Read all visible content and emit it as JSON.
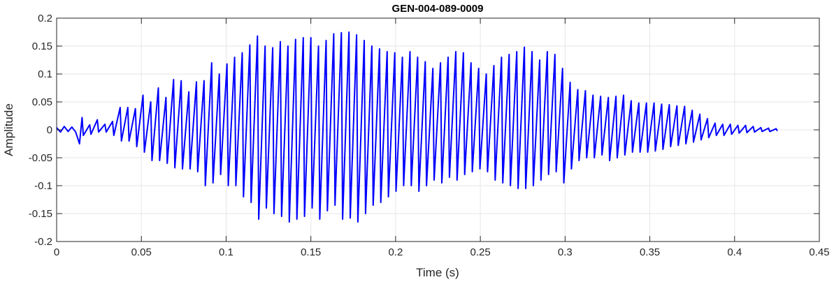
{
  "chart_data": {
    "type": "line",
    "title": "GEN-004-089-0009",
    "xlabel": "Time (s)",
    "ylabel": "Amplitude",
    "xlim": [
      0,
      0.45
    ],
    "ylim": [
      -0.2,
      0.2
    ],
    "xticks": [
      0,
      0.05,
      0.1,
      0.15,
      0.2,
      0.25,
      0.3,
      0.35,
      0.4,
      0.45
    ],
    "xtick_labels": [
      "0",
      "0.05",
      "0.1",
      "0.15",
      "0.2",
      "0.25",
      "0.3",
      "0.35",
      "0.4",
      "0.45"
    ],
    "yticks": [
      -0.2,
      -0.15,
      -0.1,
      -0.05,
      0,
      0.05,
      0.1,
      0.15,
      0.2
    ],
    "ytick_labels": [
      "-0.2",
      "-0.15",
      "-0.1",
      "-0.05",
      "0",
      "0.05",
      "0.1",
      "0.15",
      "0.2"
    ],
    "grid": true,
    "series": [
      {
        "color": "#0000ff",
        "peaks": [
          [
            0.0,
            0.004
          ],
          [
            0.0045,
            0.006
          ],
          [
            0.009,
            0.005
          ],
          [
            0.0135,
            -0.025
          ],
          [
            0.015,
            0.022
          ],
          [
            0.0195,
            0.009
          ],
          [
            0.024,
            0.018
          ],
          [
            0.0285,
            0.01
          ],
          [
            0.033,
            0.015
          ],
          [
            0.0375,
            0.04
          ],
          [
            0.042,
            0.04
          ],
          [
            0.0465,
            0.038
          ],
          [
            0.051,
            0.062
          ],
          [
            0.0555,
            0.05
          ],
          [
            0.06,
            0.075
          ],
          [
            0.0645,
            0.058
          ],
          [
            0.069,
            0.09
          ],
          [
            0.0735,
            0.088
          ],
          [
            0.078,
            0.068
          ],
          [
            0.0825,
            0.086
          ],
          [
            0.087,
            0.088
          ],
          [
            0.0915,
            0.12
          ],
          [
            0.096,
            0.1
          ],
          [
            0.1005,
            0.118
          ],
          [
            0.105,
            0.13
          ],
          [
            0.1095,
            0.138
          ],
          [
            0.114,
            0.152
          ],
          [
            0.1185,
            0.168
          ],
          [
            0.123,
            0.15
          ],
          [
            0.1275,
            0.147
          ],
          [
            0.132,
            0.158
          ],
          [
            0.1365,
            0.15
          ],
          [
            0.141,
            0.162
          ],
          [
            0.1455,
            0.165
          ],
          [
            0.15,
            0.165
          ],
          [
            0.1545,
            0.15
          ],
          [
            0.159,
            0.16
          ],
          [
            0.1635,
            0.172
          ],
          [
            0.168,
            0.174
          ],
          [
            0.1725,
            0.175
          ],
          [
            0.177,
            0.17
          ],
          [
            0.1815,
            0.16
          ],
          [
            0.186,
            0.15
          ],
          [
            0.1905,
            0.145
          ],
          [
            0.195,
            0.14
          ],
          [
            0.1995,
            0.138
          ],
          [
            0.204,
            0.13
          ],
          [
            0.2085,
            0.14
          ],
          [
            0.213,
            0.13
          ],
          [
            0.2175,
            0.122
          ],
          [
            0.222,
            0.11
          ],
          [
            0.2265,
            0.12
          ],
          [
            0.231,
            0.13
          ],
          [
            0.2355,
            0.14
          ],
          [
            0.24,
            0.138
          ],
          [
            0.2445,
            0.12
          ],
          [
            0.249,
            0.11
          ],
          [
            0.2535,
            0.1
          ],
          [
            0.258,
            0.115
          ],
          [
            0.2625,
            0.13
          ],
          [
            0.267,
            0.135
          ],
          [
            0.2715,
            0.14
          ],
          [
            0.276,
            0.148
          ],
          [
            0.2805,
            0.14
          ],
          [
            0.285,
            0.125
          ],
          [
            0.2895,
            0.14
          ],
          [
            0.294,
            0.135
          ],
          [
            0.2985,
            0.11
          ],
          [
            0.303,
            0.085
          ],
          [
            0.3075,
            0.072
          ],
          [
            0.312,
            0.07
          ],
          [
            0.3165,
            0.062
          ],
          [
            0.321,
            0.06
          ],
          [
            0.3255,
            0.058
          ],
          [
            0.33,
            0.06
          ],
          [
            0.3345,
            0.062
          ],
          [
            0.339,
            0.052
          ],
          [
            0.3435,
            0.048
          ],
          [
            0.348,
            0.048
          ],
          [
            0.3525,
            0.048
          ],
          [
            0.357,
            0.046
          ],
          [
            0.3615,
            0.045
          ],
          [
            0.366,
            0.043
          ],
          [
            0.3705,
            0.042
          ],
          [
            0.375,
            0.035
          ],
          [
            0.3795,
            0.028
          ],
          [
            0.384,
            0.02
          ],
          [
            0.3885,
            0.012
          ],
          [
            0.393,
            0.01
          ],
          [
            0.3975,
            0.01
          ],
          [
            0.402,
            0.008
          ],
          [
            0.4065,
            0.008
          ],
          [
            0.411,
            0.006
          ],
          [
            0.4155,
            0.004
          ],
          [
            0.42,
            0.003
          ],
          [
            0.4245,
            0.002
          ]
        ],
        "troughs": [
          [
            0.00225,
            -0.004
          ],
          [
            0.00675,
            -0.003
          ],
          [
            0.01125,
            -0.004
          ],
          [
            0.01575,
            -0.01
          ],
          [
            0.02025,
            -0.008
          ],
          [
            0.02475,
            -0.004
          ],
          [
            0.02925,
            -0.004
          ],
          [
            0.03375,
            -0.01
          ],
          [
            0.03825,
            -0.02
          ],
          [
            0.04275,
            -0.02
          ],
          [
            0.04725,
            -0.03
          ],
          [
            0.05175,
            -0.04
          ],
          [
            0.05625,
            -0.055
          ],
          [
            0.06075,
            -0.055
          ],
          [
            0.06525,
            -0.06
          ],
          [
            0.06975,
            -0.068
          ],
          [
            0.07425,
            -0.07
          ],
          [
            0.07875,
            -0.07
          ],
          [
            0.08325,
            -0.075
          ],
          [
            0.08775,
            -0.1
          ],
          [
            0.09225,
            -0.095
          ],
          [
            0.09675,
            -0.08
          ],
          [
            0.10125,
            -0.1
          ],
          [
            0.10575,
            -0.1
          ],
          [
            0.11025,
            -0.12
          ],
          [
            0.11475,
            -0.13
          ],
          [
            0.11925,
            -0.16
          ],
          [
            0.12375,
            -0.14
          ],
          [
            0.12825,
            -0.15
          ],
          [
            0.13275,
            -0.155
          ],
          [
            0.13725,
            -0.165
          ],
          [
            0.14175,
            -0.16
          ],
          [
            0.14625,
            -0.155
          ],
          [
            0.15075,
            -0.14
          ],
          [
            0.15525,
            -0.16
          ],
          [
            0.15975,
            -0.145
          ],
          [
            0.16425,
            -0.135
          ],
          [
            0.16875,
            -0.16
          ],
          [
            0.17325,
            -0.158
          ],
          [
            0.17775,
            -0.165
          ],
          [
            0.18225,
            -0.15
          ],
          [
            0.18675,
            -0.135
          ],
          [
            0.19125,
            -0.13
          ],
          [
            0.19575,
            -0.12
          ],
          [
            0.20025,
            -0.11
          ],
          [
            0.20475,
            -0.1
          ],
          [
            0.20925,
            -0.1
          ],
          [
            0.21375,
            -0.11
          ],
          [
            0.21825,
            -0.1
          ],
          [
            0.22275,
            -0.09
          ],
          [
            0.22725,
            -0.095
          ],
          [
            0.23175,
            -0.085
          ],
          [
            0.23625,
            -0.09
          ],
          [
            0.24075,
            -0.08
          ],
          [
            0.24525,
            -0.075
          ],
          [
            0.24975,
            -0.07
          ],
          [
            0.25425,
            -0.075
          ],
          [
            0.25875,
            -0.09
          ],
          [
            0.26325,
            -0.095
          ],
          [
            0.26775,
            -0.1
          ],
          [
            0.27225,
            -0.105
          ],
          [
            0.27675,
            -0.105
          ],
          [
            0.28125,
            -0.1
          ],
          [
            0.28575,
            -0.09
          ],
          [
            0.29025,
            -0.08
          ],
          [
            0.29475,
            -0.075
          ],
          [
            0.29925,
            -0.095
          ],
          [
            0.30375,
            -0.07
          ],
          [
            0.30825,
            -0.055
          ],
          [
            0.31275,
            -0.05
          ],
          [
            0.31725,
            -0.05
          ],
          [
            0.32175,
            -0.045
          ],
          [
            0.32625,
            -0.055
          ],
          [
            0.33075,
            -0.05
          ],
          [
            0.33525,
            -0.045
          ],
          [
            0.33975,
            -0.04
          ],
          [
            0.34425,
            -0.04
          ],
          [
            0.34875,
            -0.04
          ],
          [
            0.35325,
            -0.038
          ],
          [
            0.35775,
            -0.035
          ],
          [
            0.36225,
            -0.03
          ],
          [
            0.36675,
            -0.028
          ],
          [
            0.37125,
            -0.025
          ],
          [
            0.37575,
            -0.022
          ],
          [
            0.38025,
            -0.018
          ],
          [
            0.38475,
            -0.014
          ],
          [
            0.38925,
            -0.01
          ],
          [
            0.39375,
            -0.01
          ],
          [
            0.39825,
            -0.008
          ],
          [
            0.40275,
            -0.006
          ],
          [
            0.40725,
            -0.005
          ],
          [
            0.41175,
            -0.004
          ],
          [
            0.41625,
            -0.003
          ],
          [
            0.42075,
            -0.003
          ],
          [
            0.42525,
            -0.002
          ]
        ]
      }
    ]
  }
}
